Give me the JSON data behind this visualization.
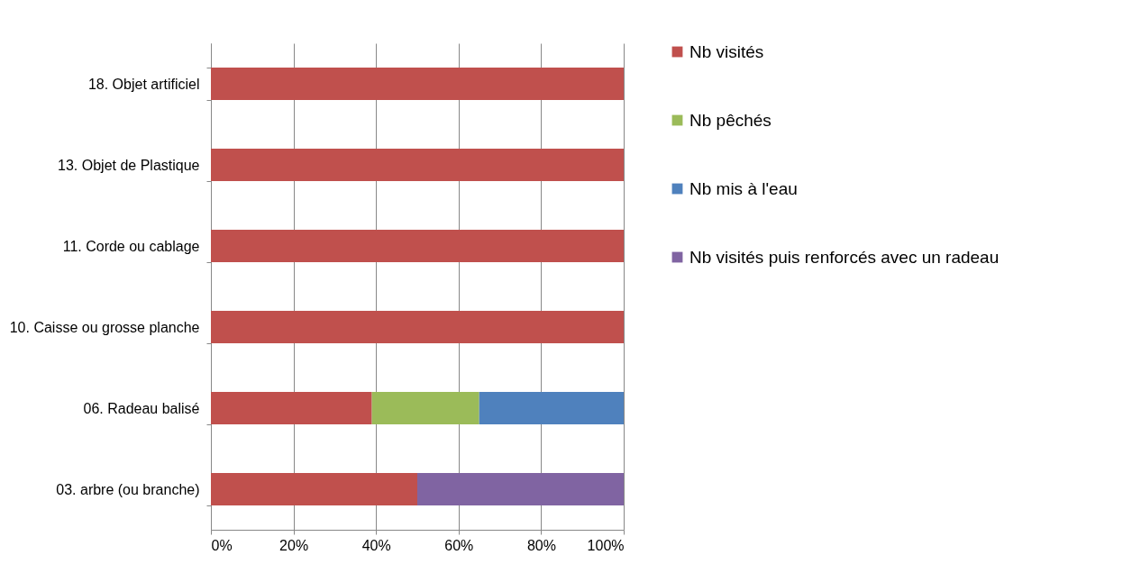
{
  "chart_data": {
    "type": "bar",
    "orientation": "horizontal",
    "stacked": true,
    "categories": [
      "18. Objet artificiel",
      "13. Objet de Plastique",
      "11. Corde ou cablage",
      "10. Caisse ou grosse planche",
      "06. Radeau balisé",
      "03. arbre (ou branche)"
    ],
    "series": [
      {
        "name": "Nb visités",
        "color": "#c0504d",
        "values": [
          100,
          100,
          100,
          100,
          39,
          50
        ]
      },
      {
        "name": "Nb pêchés",
        "color": "#9bbb59",
        "values": [
          null,
          null,
          null,
          null,
          26,
          null
        ]
      },
      {
        "name": "Nb mis à l'eau",
        "color": "#4f81bd",
        "values": [
          null,
          null,
          null,
          null,
          35,
          null
        ]
      },
      {
        "name": "Nb visités puis renforcés avec un radeau",
        "color": "#8064a2",
        "values": [
          null,
          null,
          null,
          null,
          null,
          50
        ]
      }
    ],
    "xlim": [
      0,
      100
    ],
    "xticks": [
      {
        "value": 0,
        "label": "0%"
      },
      {
        "value": 20,
        "label": "20%"
      },
      {
        "value": 40,
        "label": "40%"
      },
      {
        "value": 60,
        "label": "60%"
      },
      {
        "value": 80,
        "label": "80%"
      },
      {
        "value": 100,
        "label": "100%"
      }
    ],
    "grid": true,
    "legend": "right"
  }
}
